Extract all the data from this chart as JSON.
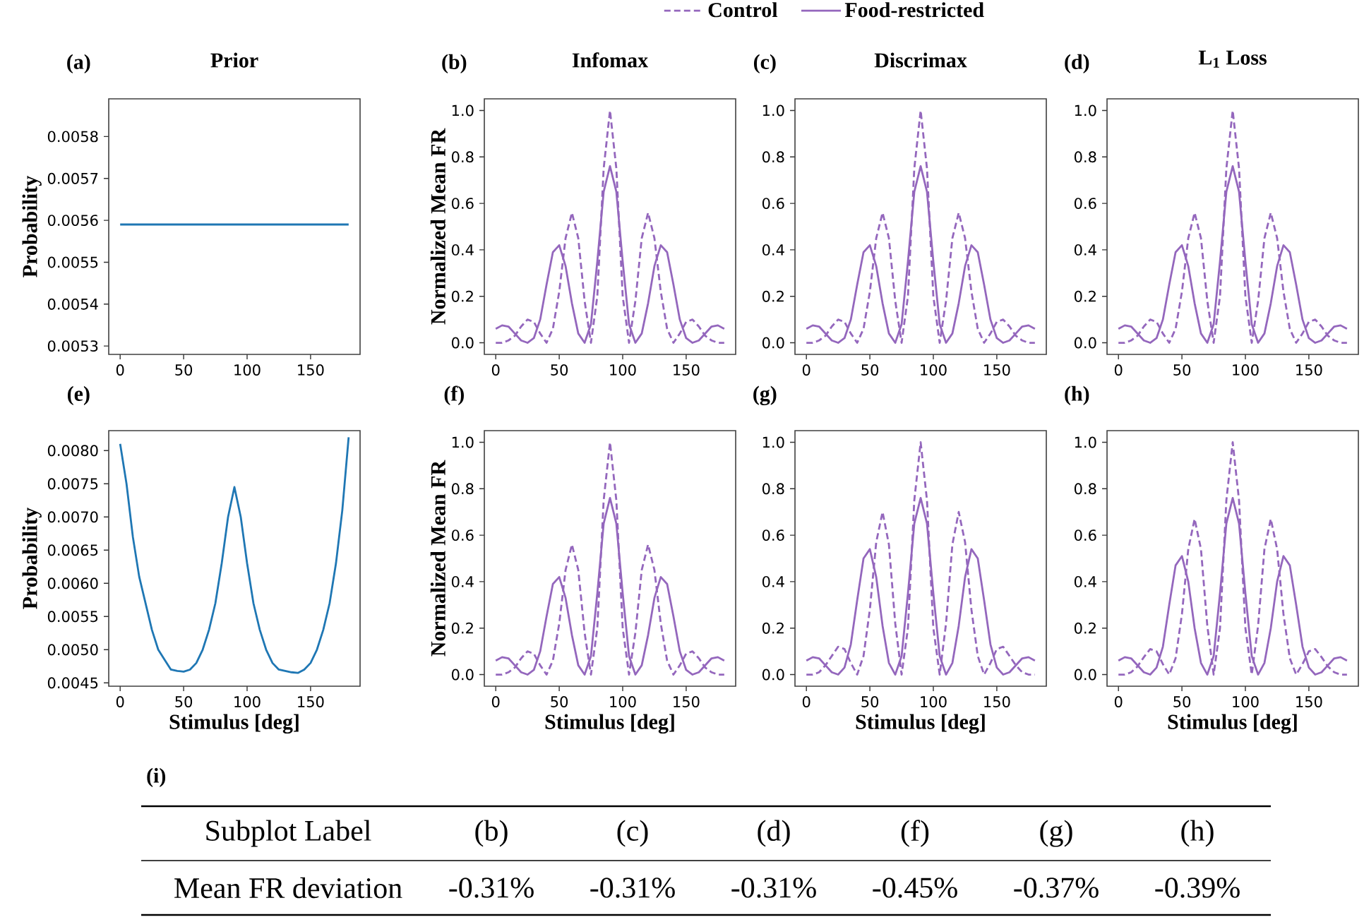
{
  "chart_data": [
    {
      "type": "line",
      "title": "Prior",
      "annotations": [
        "(a)"
      ],
      "ylabel": "Probability",
      "xlim": [
        -9,
        189
      ],
      "ylim": [
        0.00528,
        0.00589
      ],
      "xticks": [
        0,
        50,
        100,
        150
      ],
      "yticks": [
        0.0053,
        0.0054,
        0.0055,
        0.0056,
        0.0057,
        0.0058
      ],
      "series": [
        {
          "color": "#1f77b4",
          "x": [
            0,
            180
          ],
          "values": [
            0.00559,
            0.00559
          ]
        }
      ]
    },
    {
      "type": "line",
      "title": "Infomax",
      "annotations": [
        "(b)"
      ],
      "ylabel": "Normalized Mean FR",
      "xlim": [
        -9,
        189
      ],
      "ylim": [
        -0.05,
        1.05
      ],
      "xticks": [
        0,
        50,
        100,
        150
      ],
      "yticks": [
        {
          "value": 0,
          "label": "0.0"
        },
        0.2,
        0.4,
        0.6,
        0.8,
        {
          "value": 1,
          "label": "1.0"
        }
      ],
      "x": [
        0,
        5,
        10,
        15,
        20,
        25,
        30,
        35,
        40,
        45,
        50,
        55,
        60,
        65,
        70,
        75,
        80,
        85,
        90,
        95,
        100,
        105,
        110,
        115,
        120,
        125,
        130,
        135,
        140,
        145,
        150,
        155,
        160,
        165,
        170,
        175,
        180
      ],
      "series": [
        {
          "color": "#9467bd",
          "line_style": "dashed",
          "values": [
            0,
            0,
            0.01,
            0.03,
            0.07,
            0.1,
            0.09,
            0.04,
            0,
            0.06,
            0.22,
            0.45,
            0.56,
            0.45,
            0.18,
            0,
            0.2,
            0.75,
            1.0,
            0.75,
            0.2,
            0,
            0.18,
            0.45,
            0.56,
            0.45,
            0.22,
            0.06,
            0,
            0.04,
            0.09,
            0.1,
            0.07,
            0.03,
            0.01,
            0,
            0
          ]
        },
        {
          "color": "#9467bd",
          "line_style": "solid",
          "values": [
            0.06,
            0.075,
            0.07,
            0.04,
            0.01,
            0,
            0.02,
            0.1,
            0.25,
            0.39,
            0.42,
            0.33,
            0.17,
            0.04,
            0,
            0.08,
            0.35,
            0.65,
            0.76,
            0.65,
            0.35,
            0.08,
            0,
            0.04,
            0.17,
            0.33,
            0.42,
            0.39,
            0.25,
            0.1,
            0.02,
            0,
            0.01,
            0.04,
            0.07,
            0.075,
            0.06
          ]
        }
      ]
    },
    {
      "type": "line",
      "title": "Discrimax",
      "annotations": [
        "(c)"
      ],
      "legend": "top",
      "xlim": [
        -9,
        189
      ],
      "ylim": [
        -0.05,
        1.05
      ],
      "xticks": [
        0,
        50,
        100,
        150
      ],
      "yticks": [
        {
          "value": 0,
          "label": "0.0"
        },
        0.2,
        0.4,
        0.6,
        0.8,
        {
          "value": 1,
          "label": "1.0"
        }
      ],
      "x": [
        0,
        5,
        10,
        15,
        20,
        25,
        30,
        35,
        40,
        45,
        50,
        55,
        60,
        65,
        70,
        75,
        80,
        85,
        90,
        95,
        100,
        105,
        110,
        115,
        120,
        125,
        130,
        135,
        140,
        145,
        150,
        155,
        160,
        165,
        170,
        175,
        180
      ],
      "series": [
        {
          "name": "Control",
          "color": "#9467bd",
          "line_style": "dashed",
          "values": [
            0,
            0,
            0.01,
            0.03,
            0.07,
            0.1,
            0.09,
            0.04,
            0,
            0.06,
            0.22,
            0.45,
            0.56,
            0.45,
            0.18,
            0,
            0.2,
            0.75,
            1.0,
            0.75,
            0.2,
            0,
            0.18,
            0.45,
            0.56,
            0.45,
            0.22,
            0.06,
            0,
            0.04,
            0.09,
            0.1,
            0.07,
            0.03,
            0.01,
            0,
            0
          ]
        },
        {
          "name": "Food-restricted",
          "color": "#9467bd",
          "line_style": "solid",
          "values": [
            0.06,
            0.075,
            0.07,
            0.04,
            0.01,
            0,
            0.02,
            0.1,
            0.25,
            0.39,
            0.42,
            0.33,
            0.17,
            0.04,
            0,
            0.08,
            0.35,
            0.65,
            0.76,
            0.65,
            0.35,
            0.08,
            0,
            0.04,
            0.17,
            0.33,
            0.42,
            0.39,
            0.25,
            0.1,
            0.02,
            0,
            0.01,
            0.04,
            0.07,
            0.075,
            0.06
          ]
        }
      ]
    },
    {
      "type": "line",
      "title": "L$_{1}$ Loss",
      "annotations": [
        "(d)"
      ],
      "xlim": [
        -9,
        189
      ],
      "ylim": [
        -0.05,
        1.05
      ],
      "xticks": [
        0,
        50,
        100,
        150
      ],
      "yticks": [
        {
          "value": 0,
          "label": "0.0"
        },
        0.2,
        0.4,
        0.6,
        0.8,
        {
          "value": 1,
          "label": "1.0"
        }
      ],
      "x": [
        0,
        5,
        10,
        15,
        20,
        25,
        30,
        35,
        40,
        45,
        50,
        55,
        60,
        65,
        70,
        75,
        80,
        85,
        90,
        95,
        100,
        105,
        110,
        115,
        120,
        125,
        130,
        135,
        140,
        145,
        150,
        155,
        160,
        165,
        170,
        175,
        180
      ],
      "series": [
        {
          "color": "#9467bd",
          "line_style": "dashed",
          "values": [
            0,
            0,
            0.01,
            0.03,
            0.07,
            0.1,
            0.09,
            0.04,
            0,
            0.06,
            0.22,
            0.45,
            0.56,
            0.45,
            0.18,
            0,
            0.2,
            0.75,
            1.0,
            0.75,
            0.2,
            0,
            0.18,
            0.45,
            0.56,
            0.45,
            0.22,
            0.06,
            0,
            0.04,
            0.09,
            0.1,
            0.07,
            0.03,
            0.01,
            0,
            0
          ]
        },
        {
          "color": "#9467bd",
          "line_style": "solid",
          "values": [
            0.06,
            0.075,
            0.07,
            0.04,
            0.01,
            0,
            0.02,
            0.1,
            0.25,
            0.39,
            0.42,
            0.33,
            0.17,
            0.04,
            0,
            0.08,
            0.35,
            0.65,
            0.76,
            0.65,
            0.35,
            0.08,
            0,
            0.04,
            0.17,
            0.33,
            0.42,
            0.39,
            0.25,
            0.1,
            0.02,
            0,
            0.01,
            0.04,
            0.07,
            0.075,
            0.06
          ]
        }
      ]
    },
    {
      "type": "line",
      "annotations": [
        "(e)"
      ],
      "xlabel": "Stimulus [deg]",
      "ylabel": "Probability",
      "xlim": [
        -9,
        189
      ],
      "ylim": [
        0.00445,
        0.0083
      ],
      "xticks": [
        0,
        50,
        100,
        150
      ],
      "yticks": [
        0.0045,
        {
          "value": 0.005,
          "label": "0.0050"
        },
        0.0055,
        {
          "value": 0.006,
          "label": "0.0060"
        },
        0.0065,
        {
          "value": 0.007,
          "label": "0.0070"
        },
        0.0075,
        {
          "value": 0.008,
          "label": "0.0080"
        }
      ],
      "x": [
        0,
        5,
        10,
        15,
        20,
        25,
        30,
        35,
        40,
        45,
        50,
        55,
        60,
        65,
        70,
        75,
        80,
        85,
        90,
        95,
        100,
        105,
        110,
        115,
        120,
        125,
        130,
        135,
        140,
        145,
        150,
        155,
        160,
        165,
        170,
        175,
        180
      ],
      "series": [
        {
          "color": "#1f77b4",
          "values": [
            0.0081,
            0.0075,
            0.0067,
            0.0061,
            0.0057,
            0.0053,
            0.005,
            0.00485,
            0.0047,
            0.00468,
            0.00467,
            0.0047,
            0.0048,
            0.005,
            0.0053,
            0.0057,
            0.0063,
            0.007,
            0.00745,
            0.007,
            0.0063,
            0.0057,
            0.0053,
            0.005,
            0.0048,
            0.0047,
            0.00468,
            0.00466,
            0.00465,
            0.0047,
            0.0048,
            0.005,
            0.0053,
            0.0057,
            0.0063,
            0.0071,
            0.0082
          ]
        }
      ]
    },
    {
      "type": "line",
      "annotations": [
        "(f)"
      ],
      "xlabel": "Stimulus [deg]",
      "ylabel": "Normalized Mean FR",
      "xlim": [
        -9,
        189
      ],
      "ylim": [
        -0.05,
        1.05
      ],
      "xticks": [
        0,
        50,
        100,
        150
      ],
      "yticks": [
        {
          "value": 0,
          "label": "0.0"
        },
        0.2,
        0.4,
        0.6,
        0.8,
        {
          "value": 1,
          "label": "1.0"
        }
      ],
      "x": [
        0,
        5,
        10,
        15,
        20,
        25,
        30,
        35,
        40,
        45,
        50,
        55,
        60,
        65,
        70,
        75,
        80,
        85,
        90,
        95,
        100,
        105,
        110,
        115,
        120,
        125,
        130,
        135,
        140,
        145,
        150,
        155,
        160,
        165,
        170,
        175,
        180
      ],
      "series": [
        {
          "color": "#9467bd",
          "line_style": "dashed",
          "values": [
            0,
            0,
            0.01,
            0.03,
            0.07,
            0.1,
            0.09,
            0.04,
            0,
            0.06,
            0.22,
            0.45,
            0.56,
            0.45,
            0.18,
            0,
            0.2,
            0.75,
            1.0,
            0.75,
            0.2,
            0,
            0.18,
            0.45,
            0.56,
            0.45,
            0.22,
            0.06,
            0,
            0.04,
            0.09,
            0.1,
            0.07,
            0.03,
            0.01,
            0,
            0
          ]
        },
        {
          "color": "#9467bd",
          "line_style": "solid",
          "values": [
            0.06,
            0.075,
            0.07,
            0.04,
            0.01,
            0,
            0.02,
            0.1,
            0.25,
            0.39,
            0.42,
            0.33,
            0.17,
            0.04,
            0,
            0.08,
            0.35,
            0.65,
            0.76,
            0.65,
            0.35,
            0.08,
            0,
            0.04,
            0.17,
            0.33,
            0.42,
            0.39,
            0.25,
            0.1,
            0.02,
            0,
            0.01,
            0.04,
            0.07,
            0.075,
            0.06
          ]
        }
      ]
    },
    {
      "type": "line",
      "annotations": [
        "(g)"
      ],
      "xlabel": "Stimulus [deg]",
      "xlim": [
        -9,
        189
      ],
      "ylim": [
        -0.05,
        1.05
      ],
      "xticks": [
        0,
        50,
        100,
        150
      ],
      "yticks": [
        {
          "value": 0,
          "label": "0.0"
        },
        0.2,
        0.4,
        0.6,
        0.8,
        {
          "value": 1,
          "label": "1.0"
        }
      ],
      "x": [
        0,
        5,
        10,
        15,
        20,
        25,
        30,
        35,
        40,
        45,
        50,
        55,
        60,
        65,
        70,
        75,
        80,
        85,
        90,
        95,
        100,
        105,
        110,
        115,
        120,
        125,
        130,
        135,
        140,
        145,
        150,
        155,
        160,
        165,
        170,
        175,
        180
      ],
      "series": [
        {
          "color": "#9467bd",
          "line_style": "dashed",
          "values": [
            0,
            0,
            0.01,
            0.04,
            0.08,
            0.12,
            0.11,
            0.05,
            0,
            0.08,
            0.28,
            0.57,
            0.7,
            0.56,
            0.22,
            0,
            0.2,
            0.75,
            1.0,
            0.75,
            0.2,
            0,
            0.22,
            0.56,
            0.7,
            0.57,
            0.28,
            0.08,
            0,
            0.05,
            0.11,
            0.12,
            0.08,
            0.04,
            0.01,
            0,
            0
          ]
        },
        {
          "color": "#9467bd",
          "line_style": "solid",
          "values": [
            0.06,
            0.075,
            0.07,
            0.04,
            0.01,
            0,
            0.03,
            0.13,
            0.32,
            0.5,
            0.54,
            0.42,
            0.21,
            0.05,
            0,
            0.08,
            0.35,
            0.65,
            0.76,
            0.65,
            0.35,
            0.08,
            0,
            0.05,
            0.21,
            0.42,
            0.54,
            0.5,
            0.32,
            0.13,
            0.03,
            0,
            0.01,
            0.04,
            0.07,
            0.075,
            0.06
          ]
        }
      ]
    },
    {
      "type": "line",
      "annotations": [
        "(h)"
      ],
      "xlabel": "Stimulus [deg]",
      "xlim": [
        -9,
        189
      ],
      "ylim": [
        -0.05,
        1.05
      ],
      "xticks": [
        0,
        50,
        100,
        150
      ],
      "yticks": [
        {
          "value": 0,
          "label": "0.0"
        },
        0.2,
        0.4,
        0.6,
        0.8,
        {
          "value": 1,
          "label": "1.0"
        }
      ],
      "x": [
        0,
        5,
        10,
        15,
        20,
        25,
        30,
        35,
        40,
        45,
        50,
        55,
        60,
        65,
        70,
        75,
        80,
        85,
        90,
        95,
        100,
        105,
        110,
        115,
        120,
        125,
        130,
        135,
        140,
        145,
        150,
        155,
        160,
        165,
        170,
        175,
        180
      ],
      "series": [
        {
          "color": "#9467bd",
          "line_style": "dashed",
          "values": [
            0,
            0,
            0.01,
            0.035,
            0.075,
            0.11,
            0.1,
            0.045,
            0,
            0.07,
            0.26,
            0.54,
            0.67,
            0.54,
            0.21,
            0,
            0.2,
            0.75,
            1.0,
            0.75,
            0.2,
            0,
            0.21,
            0.54,
            0.67,
            0.54,
            0.26,
            0.07,
            0,
            0.045,
            0.1,
            0.11,
            0.075,
            0.035,
            0.01,
            0,
            0
          ]
        },
        {
          "color": "#9467bd",
          "line_style": "solid",
          "values": [
            0.06,
            0.075,
            0.07,
            0.04,
            0.01,
            0,
            0.03,
            0.12,
            0.3,
            0.47,
            0.51,
            0.4,
            0.2,
            0.05,
            0,
            0.08,
            0.35,
            0.65,
            0.76,
            0.65,
            0.35,
            0.08,
            0,
            0.05,
            0.2,
            0.4,
            0.51,
            0.47,
            0.3,
            0.12,
            0.03,
            0,
            0.01,
            0.04,
            0.07,
            0.075,
            0.06
          ]
        }
      ]
    },
    {
      "type": "other",
      "title": "(i)",
      "annotations": [
        "Subplot Label",
        "(b)",
        "(c)",
        "(d)",
        "(f)",
        "(g)",
        "(h)",
        "Mean FR deviation",
        "-0.31%",
        "-0.31%",
        "-0.31%",
        "-0.45%",
        "-0.37%",
        "-0.39%"
      ]
    }
  ]
}
